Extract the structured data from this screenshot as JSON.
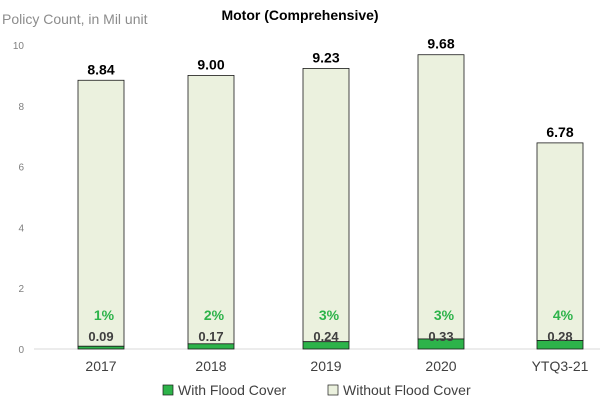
{
  "chart_data": {
    "type": "bar",
    "stacked": true,
    "title": "Motor (Comprehensive)",
    "ylabel": "Policy Count, in Mil unit",
    "xlabel": "",
    "ylim": [
      0,
      10
    ],
    "yticks": [
      "0",
      "2",
      "4",
      "6",
      "8",
      "10"
    ],
    "grid": false,
    "legend_position": "bottom",
    "categories": [
      "2017",
      "2018",
      "2019",
      "2020",
      "YTQ3-21"
    ],
    "totals": [
      8.84,
      9.0,
      9.23,
      9.68,
      6.78
    ],
    "total_labels": [
      "8.84",
      "9.00",
      "9.23",
      "9.68",
      "6.78"
    ],
    "series": [
      {
        "name": "With Flood Cover",
        "color": "#2db34a",
        "values": [
          0.09,
          0.17,
          0.24,
          0.33,
          0.28
        ],
        "labels": [
          "0.09",
          "0.17",
          "0.24",
          "0.33",
          "0.28"
        ]
      },
      {
        "name": "Without Flood Cover",
        "color": "#ebf1de",
        "values": [
          8.75,
          8.83,
          8.99,
          9.35,
          6.5
        ]
      }
    ],
    "flood_share_labels": [
      "1%",
      "2%",
      "3%",
      "3%",
      "4%"
    ]
  }
}
